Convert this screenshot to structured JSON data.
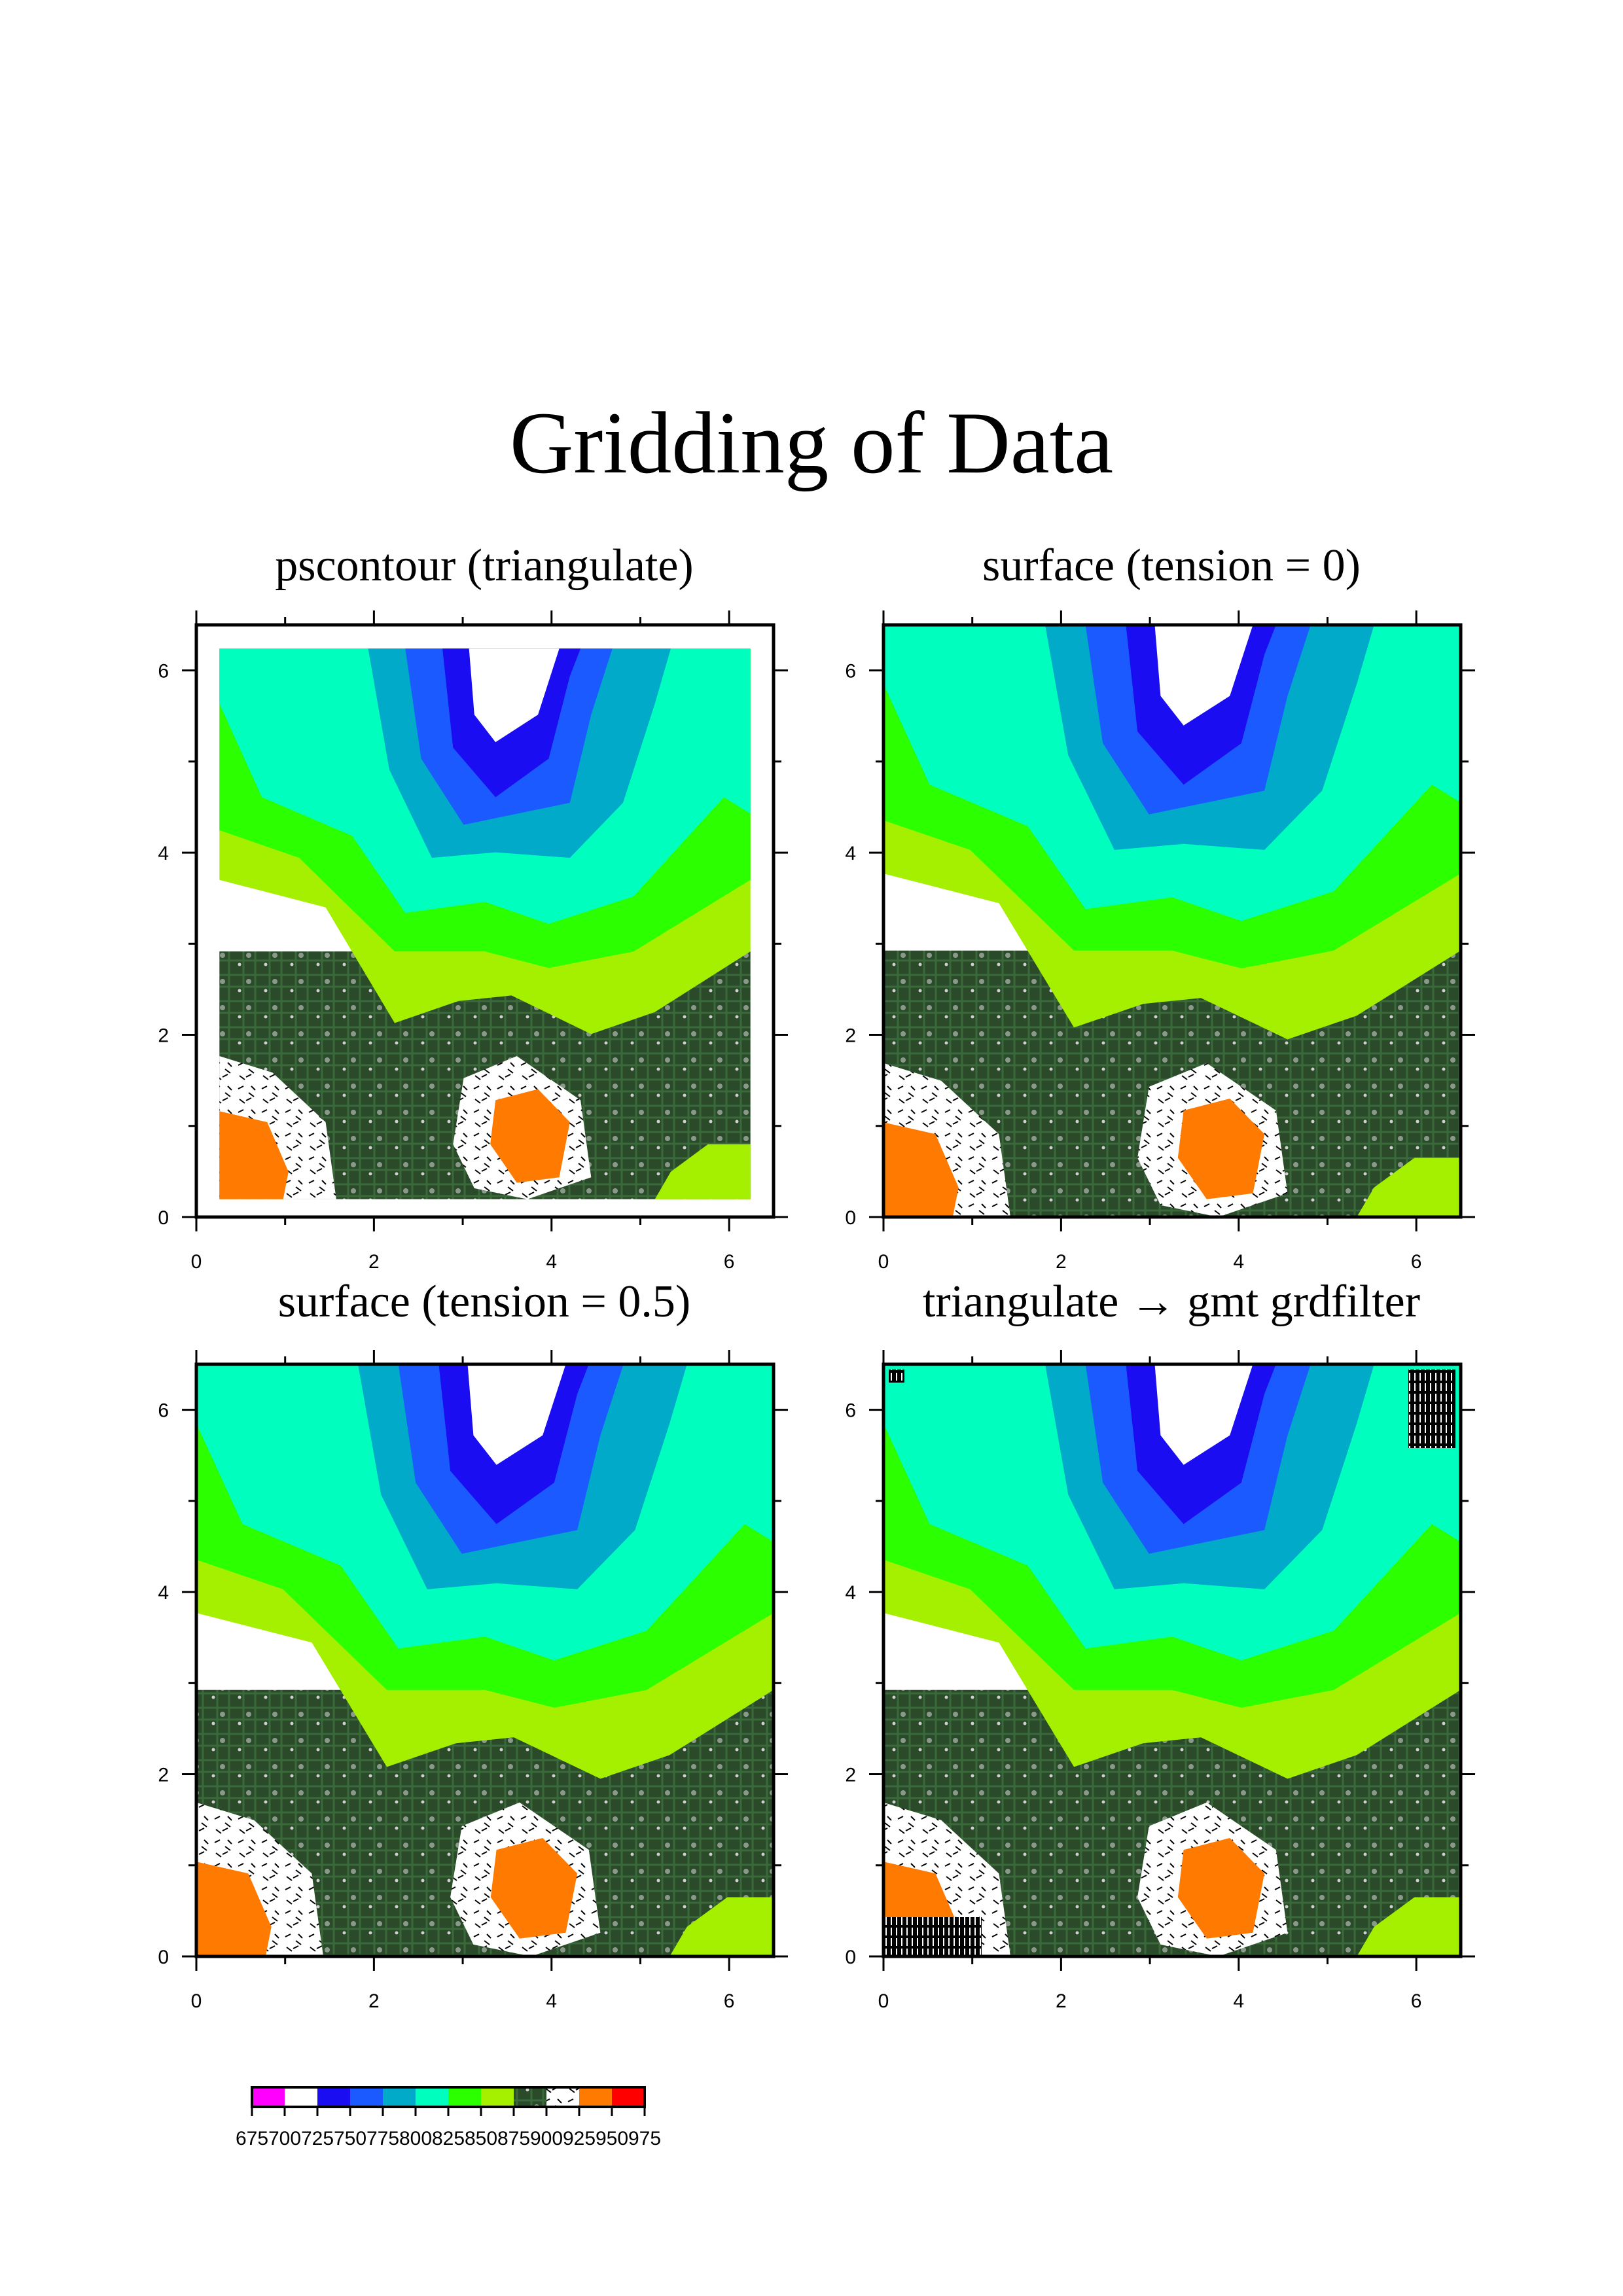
{
  "title": "Gridding of Data",
  "panels": [
    {
      "title": "pscontour (triangulate)"
    },
    {
      "title": "surface (tension = 0)"
    },
    {
      "title": "surface (tension = 0.5)"
    },
    {
      "title": "triangulate → gmt grdfilter"
    }
  ],
  "colors": {
    "magenta": "#ff00ff",
    "white": "#ffffff",
    "blue": "#1a0df2",
    "blue2": "#1a5aff",
    "teal": "#00aac8",
    "aqua": "#00ffbe",
    "green": "#2cff00",
    "lime": "#a4f000",
    "pcb": "#2a4a2a",
    "orange": "#ff7a00",
    "red": "#ff0000"
  },
  "chart_data": [
    {
      "type": "heatmap",
      "title": "pscontour (triangulate)",
      "xlim": [
        0,
        6.5
      ],
      "ylim": [
        0,
        6.5
      ],
      "xticks": [
        0,
        2,
        4,
        6
      ],
      "yticks": [
        0,
        2,
        4,
        6
      ],
      "colorscale": "levels"
    },
    {
      "type": "heatmap",
      "title": "surface (tension = 0)",
      "xlim": [
        0,
        6.5
      ],
      "ylim": [
        0,
        6.5
      ],
      "xticks": [
        0,
        2,
        4,
        6
      ],
      "yticks": [
        0,
        2,
        4,
        6
      ],
      "colorscale": "levels"
    },
    {
      "type": "heatmap",
      "title": "surface (tension = 0.5)",
      "xlim": [
        0,
        6.5
      ],
      "ylim": [
        0,
        6.5
      ],
      "xticks": [
        0,
        2,
        4,
        6
      ],
      "yticks": [
        0,
        2,
        4,
        6
      ],
      "colorscale": "levels"
    },
    {
      "type": "heatmap",
      "title": "triangulate → gmt grdfilter",
      "xlim": [
        0,
        6.5
      ],
      "ylim": [
        0,
        6.5
      ],
      "xticks": [
        0,
        2,
        4,
        6
      ],
      "yticks": [
        0,
        2,
        4,
        6
      ],
      "colorscale": "levels"
    }
  ],
  "colorbar": {
    "labels": [
      "675",
      "700",
      "725",
      "750",
      "775",
      "800",
      "825",
      "850",
      "875",
      "900",
      "925",
      "950",
      "975"
    ],
    "colors": [
      "#ff00ff",
      "#ffffff",
      "#1a0df2",
      "#1a5aff",
      "#00aac8",
      "#00ffbe",
      "#2cff00",
      "#a4f000",
      "#2a4a2a",
      "#ffffff",
      "#ff7a00",
      "#ff0000"
    ]
  }
}
